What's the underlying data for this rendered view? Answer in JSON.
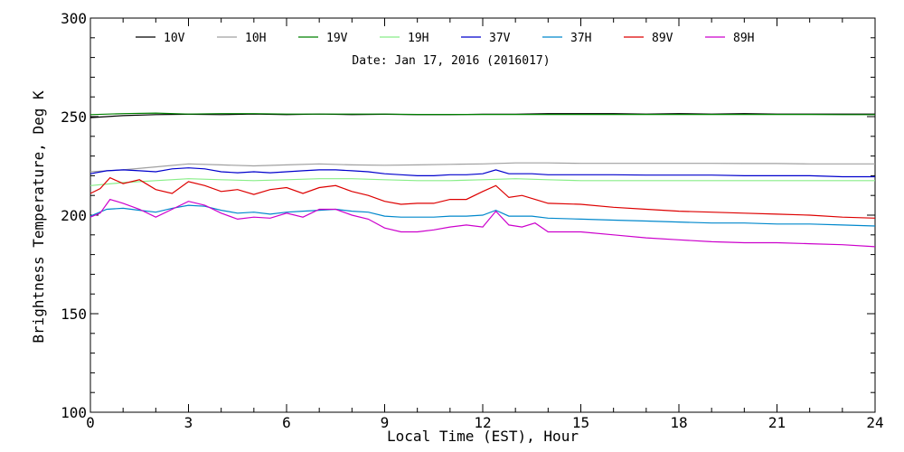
{
  "chart_data": {
    "type": "line",
    "annotation": "Date: Jan 17, 2016 (2016017)",
    "xlabel": "Local Time (EST), Hour",
    "ylabel": "Brightness Temperature, Deg K",
    "xlim": [
      0,
      24
    ],
    "ylim": [
      100,
      300
    ],
    "xticks": [
      0,
      3,
      6,
      9,
      12,
      15,
      18,
      21,
      24
    ],
    "yticks": [
      100,
      150,
      200,
      250,
      300
    ],
    "grid": false,
    "legend_position": "top",
    "series": [
      {
        "name": "10V",
        "color": "#000000",
        "x": [
          0,
          0.5,
          1,
          2,
          3,
          4,
          5,
          6,
          7,
          8,
          9,
          10,
          11,
          12,
          13,
          14,
          15,
          16,
          17,
          18,
          19,
          20,
          21,
          22,
          23,
          24
        ],
        "y": [
          249.5,
          250,
          250.5,
          251,
          251.2,
          251,
          251.3,
          251,
          251.3,
          251,
          251.2,
          251,
          251,
          251.2,
          251.2,
          251.5,
          251.5,
          251.5,
          251.3,
          251.5,
          251.3,
          251.5,
          251.3,
          251.3,
          251.3,
          251.3
        ]
      },
      {
        "name": "10H",
        "color": "#a0a0a0",
        "x": [
          0,
          1,
          2,
          3,
          4,
          5,
          6,
          7,
          8,
          9,
          10,
          11,
          12,
          13,
          14,
          15,
          16,
          17,
          18,
          19,
          20,
          21,
          22,
          23,
          24
        ],
        "y": [
          222,
          223,
          224.5,
          226,
          225.5,
          225,
          225.5,
          226,
          225.5,
          225.3,
          225.5,
          225.8,
          226,
          226.5,
          226.5,
          226.3,
          226.3,
          226.3,
          226.3,
          226.3,
          226.2,
          226.2,
          226,
          226,
          226
        ]
      },
      {
        "name": "19V",
        "color": "#008000",
        "x": [
          0,
          1,
          2,
          3,
          4,
          5,
          6,
          7,
          8,
          9,
          10,
          11,
          12,
          13,
          14,
          15,
          16,
          17,
          18,
          19,
          20,
          21,
          22,
          23,
          24
        ],
        "y": [
          251,
          251.5,
          251.8,
          251.3,
          251.5,
          251.5,
          251.3,
          251.3,
          251.3,
          251.3,
          251.1,
          251.1,
          251.1,
          251.1,
          251.1,
          251.1,
          251.1,
          251.1,
          251.1,
          251.1,
          251.1,
          251.1,
          251.1,
          251,
          251
        ]
      },
      {
        "name": "19H",
        "color": "#88ee88",
        "x": [
          0,
          1,
          2,
          3,
          4,
          5,
          6,
          7,
          8,
          9,
          10,
          11,
          12,
          13,
          14,
          15,
          16,
          17,
          18,
          19,
          20,
          21,
          22,
          23,
          24
        ],
        "y": [
          215,
          216.5,
          217.5,
          218.5,
          218,
          217.5,
          218,
          218.5,
          218.5,
          218,
          217.5,
          217.5,
          218,
          218.5,
          218,
          217.5,
          217.5,
          217.5,
          217.5,
          217.5,
          217.5,
          217.5,
          217.5,
          217.5,
          217.5
        ]
      },
      {
        "name": "37V",
        "color": "#0000cc",
        "x": [
          0,
          0.5,
          1,
          1.5,
          2,
          2.5,
          3,
          3.5,
          4,
          4.5,
          5,
          5.5,
          6,
          6.5,
          7,
          7.5,
          8,
          8.5,
          9,
          9.5,
          10,
          10.5,
          11,
          11.5,
          12,
          12.4,
          12.8,
          13.5,
          14,
          15,
          16,
          17,
          18,
          19,
          20,
          21,
          22,
          23,
          24
        ],
        "y": [
          221,
          222.5,
          223,
          222.5,
          222,
          223.5,
          224,
          223.5,
          222,
          221.5,
          222,
          221.5,
          222,
          222.5,
          223,
          223,
          222.5,
          222,
          221,
          220.5,
          220,
          220,
          220.5,
          220.5,
          221,
          223,
          221,
          221,
          220.5,
          220.5,
          220.5,
          220.3,
          220.3,
          220.3,
          220,
          220,
          220,
          219.5,
          219.5
        ]
      },
      {
        "name": "37H",
        "color": "#0088cc",
        "x": [
          0,
          0.5,
          1,
          1.5,
          2,
          2.5,
          3,
          3.5,
          4,
          4.5,
          5,
          5.5,
          6,
          6.5,
          7,
          7.5,
          8,
          8.5,
          9,
          9.5,
          10,
          10.5,
          11,
          11.5,
          12,
          12.4,
          12.8,
          13.5,
          14,
          15,
          16,
          17,
          18,
          19,
          20,
          21,
          22,
          23,
          24
        ],
        "y": [
          199.5,
          203,
          203.5,
          202.5,
          201.5,
          203.5,
          205,
          204.5,
          202.5,
          201,
          201.5,
          200.5,
          201.5,
          202,
          202.5,
          203,
          202,
          201.5,
          199.5,
          199,
          199,
          199,
          199.5,
          199.5,
          200,
          202.5,
          199.5,
          199.5,
          198.5,
          198,
          197.5,
          197,
          196.5,
          196,
          196,
          195.5,
          195.5,
          195,
          194.5
        ]
      },
      {
        "name": "89V",
        "color": "#dd0000",
        "x": [
          0,
          0.3,
          0.6,
          1,
          1.5,
          2,
          2.5,
          3,
          3.5,
          4,
          4.5,
          5,
          5.5,
          6,
          6.5,
          7,
          7.5,
          8,
          8.5,
          9,
          9.5,
          10,
          10.5,
          11,
          11.5,
          12,
          12.4,
          12.8,
          13.2,
          13.6,
          14,
          15,
          16,
          17,
          18,
          19,
          20,
          21,
          22,
          23,
          24
        ],
        "y": [
          211,
          213.5,
          219,
          216,
          218,
          213,
          211,
          217,
          215,
          212,
          213,
          210.5,
          213,
          214,
          211,
          214,
          215,
          212,
          210,
          207,
          205.5,
          206,
          206,
          208,
          208,
          212,
          215,
          209,
          210,
          208,
          206,
          205.5,
          204,
          203,
          202,
          201.5,
          201,
          200.5,
          200,
          199,
          198.5
        ]
      },
      {
        "name": "89H",
        "color": "#cc00cc",
        "x": [
          0,
          0.3,
          0.6,
          1,
          1.5,
          2,
          2.5,
          3,
          3.5,
          4,
          4.5,
          5,
          5.5,
          6,
          6.5,
          7,
          7.5,
          8,
          8.5,
          9,
          9.5,
          10,
          10.5,
          11,
          11.5,
          12,
          12.4,
          12.8,
          13.2,
          13.6,
          14,
          15,
          16,
          17,
          18,
          19,
          20,
          21,
          22,
          23,
          24
        ],
        "y": [
          199,
          201,
          208,
          206,
          203,
          199,
          203,
          207,
          205,
          201,
          198,
          199,
          198.5,
          201,
          199,
          203,
          203,
          200,
          198,
          193.5,
          191.5,
          191.5,
          192.5,
          194,
          195,
          194,
          202,
          195,
          194,
          196,
          191.5,
          191.5,
          190,
          188.5,
          187.5,
          186.5,
          186,
          186,
          185.5,
          185,
          184
        ]
      }
    ]
  }
}
